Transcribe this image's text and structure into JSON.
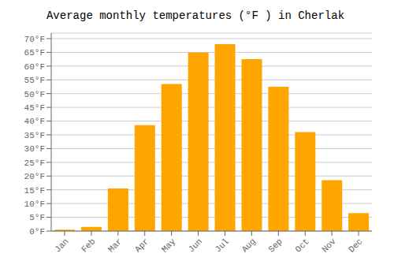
{
  "chart_data": {
    "type": "bar",
    "title": "Average monthly temperatures (°F ) in Cherlak",
    "categories": [
      "Jan",
      "Feb",
      "Mar",
      "Apr",
      "May",
      "Jun",
      "Jul",
      "Aug",
      "Sep",
      "Oct",
      "Nov",
      "Dec"
    ],
    "values": [
      0.5,
      1.5,
      15.5,
      38.5,
      53.5,
      65.0,
      68.0,
      62.5,
      52.5,
      36.0,
      18.5,
      6.5
    ],
    "color": "#FFA500",
    "ylim": [
      0,
      72
    ],
    "yticks": [
      {
        "value": 0,
        "label": "0°F"
      },
      {
        "value": 5,
        "label": "5°F"
      },
      {
        "value": 10,
        "label": "10°F"
      },
      {
        "value": 15,
        "label": "15°F"
      },
      {
        "value": 20,
        "label": "20°F"
      },
      {
        "value": 25,
        "label": "25°F"
      },
      {
        "value": 30,
        "label": "30°F"
      },
      {
        "value": 35,
        "label": "35°F"
      },
      {
        "value": 40,
        "label": "40°F"
      },
      {
        "value": 45,
        "label": "45°F"
      },
      {
        "value": 50,
        "label": "50°F"
      },
      {
        "value": 55,
        "label": "55°F"
      },
      {
        "value": 60,
        "label": "60°F"
      },
      {
        "value": 65,
        "label": "65°F"
      },
      {
        "value": 70,
        "label": "70°F"
      }
    ],
    "grid": true
  }
}
